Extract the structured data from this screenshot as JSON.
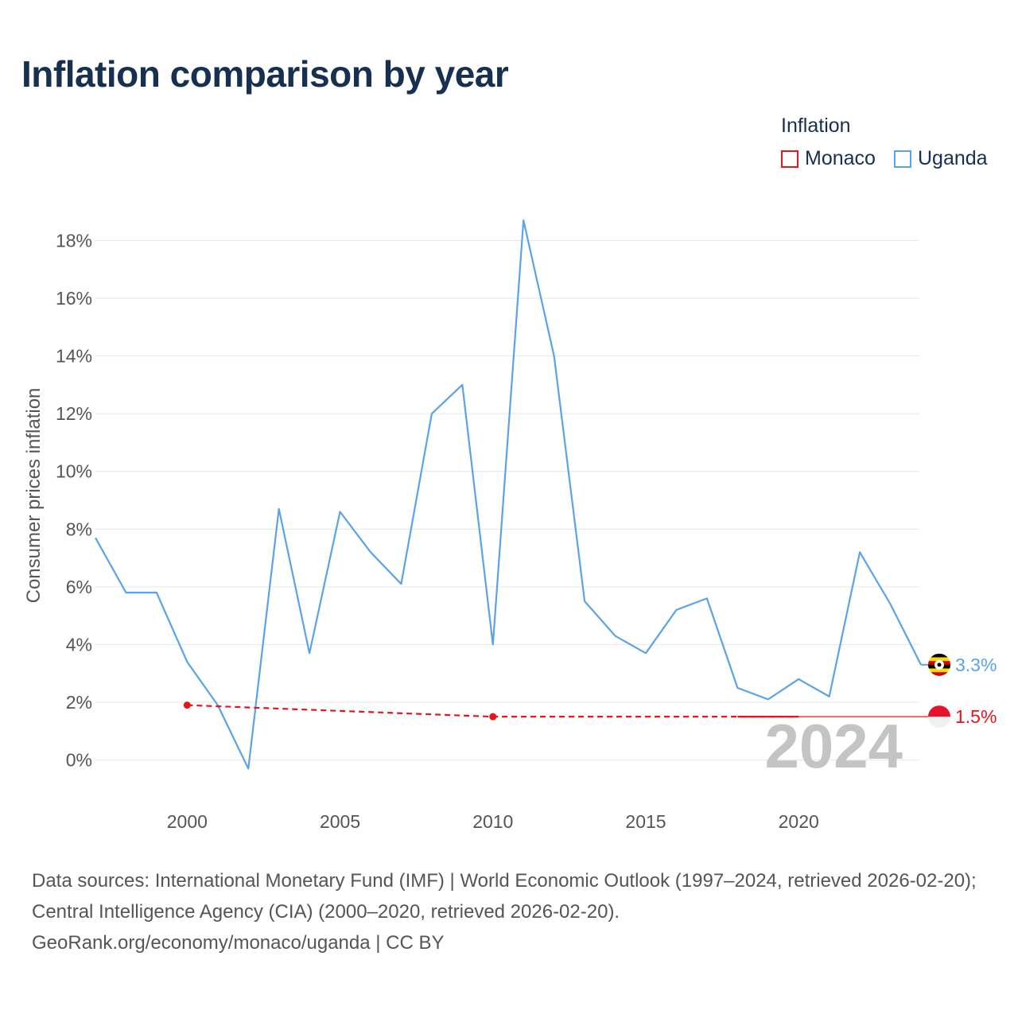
{
  "colors": {
    "monaco": "#e8141c",
    "uganda": "#5ba3e6",
    "title": "#17304f",
    "grid": "#e6e6e6",
    "watermark": "#c4c4c4"
  },
  "chart_data": {
    "type": "line",
    "title": "Inflation comparison by year",
    "xlabel": "",
    "ylabel": "Consumer prices inflation",
    "xlim": [
      1997,
      2024
    ],
    "ylim": [
      -1.5,
      19.5
    ],
    "yticks": [
      0,
      2,
      4,
      6,
      8,
      10,
      12,
      14,
      16,
      18
    ],
    "ytick_labels": [
      "0%",
      "2%",
      "4%",
      "6%",
      "8%",
      "10%",
      "12%",
      "14%",
      "16%",
      "18%"
    ],
    "xticks": [
      2000,
      2005,
      2010,
      2015,
      2020
    ],
    "xtick_labels": [
      "2000",
      "2005",
      "2010",
      "2015",
      "2020"
    ],
    "legend": {
      "title": "Inflation",
      "placement": "top-right"
    },
    "series": [
      {
        "name": "Monaco",
        "style": "dashed-with-markers",
        "x": [
          2000,
          2010,
          2020
        ],
        "values": [
          1.9,
          1.5,
          1.5
        ],
        "end_label": "1.5%"
      },
      {
        "name": "Uganda",
        "style": "solid",
        "x": [
          1997,
          1998,
          1999,
          2000,
          2001,
          2002,
          2003,
          2004,
          2005,
          2006,
          2007,
          2008,
          2009,
          2010,
          2011,
          2012,
          2013,
          2014,
          2015,
          2016,
          2017,
          2018,
          2019,
          2020,
          2021,
          2022,
          2023,
          2024
        ],
        "values": [
          7.7,
          5.8,
          5.8,
          3.4,
          1.9,
          -0.3,
          8.7,
          3.7,
          8.6,
          7.2,
          6.1,
          12.0,
          13.0,
          4.0,
          18.7,
          14.0,
          5.5,
          4.3,
          3.7,
          5.2,
          5.6,
          2.5,
          2.1,
          2.8,
          2.2,
          7.2,
          5.4,
          3.3
        ],
        "end_label": "3.3%"
      }
    ],
    "watermark_year": "2024"
  },
  "footer": {
    "source_text": "Data sources: International Monetary Fund (IMF) | World Economic Outlook (1997–2024, retrieved 2026-02-20); Central Intelligence Agency (CIA) (2000–2020, retrieved 2026-02-20).",
    "attribution": "GeoRank.org/economy/monaco/uganda | CC BY"
  }
}
